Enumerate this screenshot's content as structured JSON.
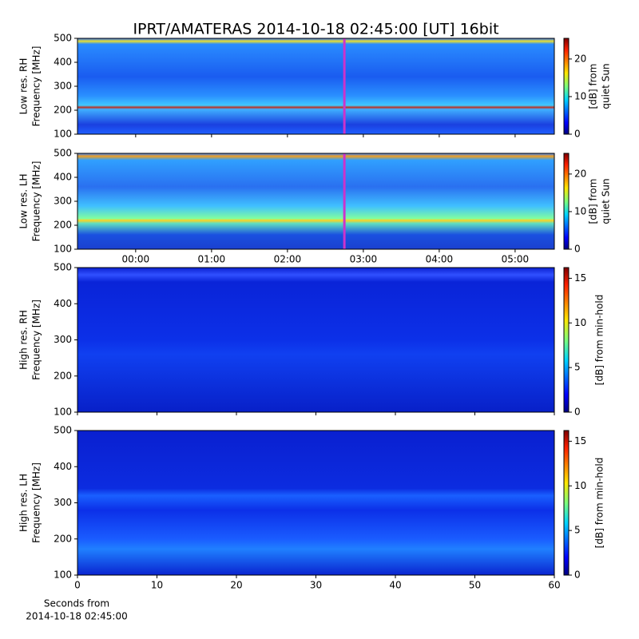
{
  "chart_data": [
    {
      "type": "heatmap",
      "title": "IPRT/AMATERAS 2014-10-18 02:45:00 [UT]   16bit",
      "ylabel": [
        "Low res. RH",
        "Frequency [MHz]"
      ],
      "ylim": [
        100,
        500
      ],
      "yticks": [
        100,
        200,
        300,
        400,
        500
      ],
      "xlim": [
        -46,
        331
      ],
      "marker_x": 165,
      "marker_color": "#cc33cc",
      "colorbar_label": [
        "[dB] from",
        "quiet Sun"
      ],
      "clim": [
        0,
        25.5
      ],
      "cticks": [
        0,
        10,
        20
      ]
    },
    {
      "type": "heatmap",
      "ylabel": [
        "Low res. LH",
        "Frequency [MHz]"
      ],
      "ylim": [
        100,
        500
      ],
      "yticks": [
        100,
        200,
        300,
        400,
        500
      ],
      "xlim": [
        -46,
        331
      ],
      "xticks": [
        {
          "value": 0,
          "label": "00:00"
        },
        {
          "value": 60,
          "label": "01:00"
        },
        {
          "value": 120,
          "label": "02:00"
        },
        {
          "value": 180,
          "label": "03:00"
        },
        {
          "value": 240,
          "label": "04:00"
        },
        {
          "value": 300,
          "label": "05:00"
        }
      ],
      "marker_x": 165,
      "marker_color": "#cc33cc",
      "colorbar_label": [
        "[dB] from",
        "quiet Sun"
      ],
      "clim": [
        0,
        25.5
      ],
      "cticks": [
        0,
        10,
        20
      ]
    },
    {
      "type": "heatmap",
      "ylabel": [
        "High res. RH",
        "Frequency [MHz]"
      ],
      "ylim": [
        100,
        500
      ],
      "yticks": [
        100,
        200,
        300,
        400,
        500
      ],
      "xlim": [
        0,
        60
      ],
      "colorbar_label": [
        "[dB] from min-hold"
      ],
      "clim": [
        0,
        16.2
      ],
      "cticks": [
        0,
        5,
        10,
        15
      ]
    },
    {
      "type": "heatmap",
      "ylabel": [
        "High res. LH",
        "Frequency [MHz]"
      ],
      "ylim": [
        100,
        500
      ],
      "yticks": [
        100,
        200,
        300,
        400,
        500
      ],
      "xlim": [
        0,
        60
      ],
      "xticks": [
        0,
        10,
        20,
        30,
        40,
        50,
        60
      ],
      "xlabel": [
        "Seconds from",
        "2014-10-18 02:45:00"
      ],
      "colorbar_label": [
        "[dB] from min-hold"
      ],
      "clim": [
        0,
        16.2
      ],
      "cticks": [
        0,
        5,
        10,
        15
      ]
    }
  ]
}
